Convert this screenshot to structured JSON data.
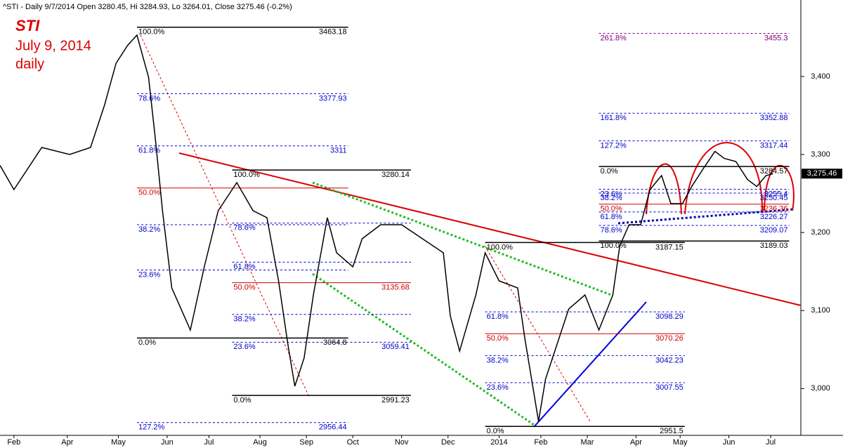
{
  "chart_data": {
    "type": "line",
    "header": "^STI - Daily 9/7/2014 Open 3280.45, Hi 3284.93, Lo 3264.01, Close 3275.46 (-0.2%)",
    "title": "STI",
    "subtitle": "July 9, 2014",
    "subtitle2": "daily",
    "xlim": [
      0,
      345
    ],
    "xticks": [
      {
        "value": 6,
        "label": "Feb"
      },
      {
        "value": 29,
        "label": "Apr"
      },
      {
        "value": 51,
        "label": "May"
      },
      {
        "value": 72,
        "label": "Jun"
      },
      {
        "value": 90,
        "label": "Jul"
      },
      {
        "value": 112,
        "label": "Aug"
      },
      {
        "value": 132,
        "label": "Sep"
      },
      {
        "value": 152,
        "label": "Oct"
      },
      {
        "value": 173,
        "label": "Nov"
      },
      {
        "value": 193,
        "label": "Dec"
      },
      {
        "value": 215,
        "label": "2014"
      },
      {
        "value": 233,
        "label": "Feb"
      },
      {
        "value": 253,
        "label": "Mar"
      },
      {
        "value": 274,
        "label": "Apr"
      },
      {
        "value": 293,
        "label": "May"
      },
      {
        "value": 314,
        "label": "Jun"
      },
      {
        "value": 332,
        "label": "Jul"
      }
    ],
    "ylim": [
      2940,
      3498
    ],
    "yticks": [
      {
        "value": 3000,
        "label": "3,000"
      },
      {
        "value": 3100,
        "label": "3,100"
      },
      {
        "value": 3200,
        "label": "3,200"
      },
      {
        "value": 3300,
        "label": "3,300"
      },
      {
        "value": 3400,
        "label": "3,400"
      }
    ],
    "last_price": {
      "value": 3275.46,
      "label": "3,275.46"
    },
    "series": [
      {
        "name": "STI",
        "color": "#000000",
        "x": [
          0,
          6,
          18,
          30,
          39,
          45,
          50,
          55,
          59,
          64,
          67,
          70,
          74,
          82,
          88,
          94,
          102,
          109,
          115,
          120,
          124,
          127,
          131,
          135,
          141,
          145,
          152,
          156,
          164,
          173,
          182,
          191,
          194,
          198,
          205,
          209,
          215,
          223,
          226,
          230,
          232,
          235,
          239,
          245,
          252,
          258,
          264,
          267,
          271,
          276,
          280,
          285,
          289,
          294,
          298,
          303,
          308,
          312,
          317,
          322,
          326,
          330,
          333
        ],
        "values": [
          3286,
          3255,
          3309,
          3300,
          3309,
          3363,
          3417,
          3440,
          3453,
          3399,
          3318,
          3228,
          3129,
          3075,
          3156,
          3228,
          3264,
          3228,
          3219,
          3138,
          3057,
          3003,
          3039,
          3120,
          3219,
          3174,
          3156,
          3192,
          3210,
          3210,
          3192,
          3174,
          3093,
          3048,
          3120,
          3174,
          3138,
          3129,
          3066,
          2994,
          2958,
          3012,
          3048,
          3102,
          3120,
          3075,
          3120,
          3183,
          3210,
          3210,
          3255,
          3273,
          3237,
          3237,
          3259,
          3282,
          3304,
          3295,
          3291,
          3268,
          3259,
          3273,
          3275.46
        ]
      }
    ],
    "fib": [
      {
        "x": [
          59,
          150
        ],
        "color": "#0000cc",
        "levels": [
          {
            "pct": "100.0%",
            "price": 3463.18,
            "color": "#000000"
          },
          {
            "pct": "78.6%",
            "price": 3377.93
          },
          {
            "pct": "61.8%",
            "price": 3311.0
          },
          {
            "pct": "50.0%",
            "level": 3257,
            "color": "#cc0000"
          },
          {
            "pct": "38.2%",
            "level": 3210
          },
          {
            "pct": "23.6%",
            "level": 3152
          },
          {
            "pct": "0.0%",
            "price": 3064.8,
            "color": "#000000"
          },
          {
            "pct": "127.2%",
            "price": 2956.44
          }
        ]
      },
      {
        "x": [
          100,
          177
        ],
        "color": "#0000cc",
        "levels": [
          {
            "pct": "100.0%",
            "price": 3280.14,
            "color": "#000000"
          },
          {
            "pct": "78.6%",
            "level": 3212
          },
          {
            "pct": "61.8%",
            "level": 3162
          },
          {
            "pct": "50.0%",
            "price": 3135.68,
            "color": "#cc0000"
          },
          {
            "pct": "38.2%",
            "level": 3095
          },
          {
            "pct": "23.6%",
            "price": 3059.41
          },
          {
            "pct": "0.0%",
            "price": 2991.23,
            "color": "#000000"
          }
        ]
      },
      {
        "x": [
          209,
          295
        ],
        "color": "#0000cc",
        "levels": [
          {
            "pct": "100.0%",
            "price": 3187.15,
            "color": "#000000"
          },
          {
            "pct": "61.8%",
            "price": 3098.29
          },
          {
            "pct": "50.0%",
            "price": 3070.26,
            "color": "#cc0000"
          },
          {
            "pct": "38.2%",
            "price": 3042.23
          },
          {
            "pct": "23.6%",
            "price": 3007.55
          },
          {
            "pct": "0.0%",
            "price": 2951.5,
            "color": "#000000"
          }
        ]
      },
      {
        "x": [
          258,
          340
        ],
        "color": "#0000cc",
        "levels": [
          {
            "pct": "261.8%",
            "price": 3455.3,
            "color": "#800080"
          },
          {
            "pct": "161.8%",
            "price": 3352.88
          },
          {
            "pct": "127.2%",
            "price": 3317.44
          },
          {
            "pct": "0.0%",
            "price": 3284.57,
            "color": "#000000"
          },
          {
            "pct": "23.6%",
            "price": 3255.4
          },
          {
            "pct": "38.2%",
            "price": 3250.45
          },
          {
            "pct": "50.0%",
            "price": 3236.36,
            "color": "#cc0000"
          },
          {
            "pct": "61.8%",
            "price": 3226.27
          },
          {
            "pct": "78.6%",
            "price": 3209.07
          },
          {
            "pct": "100.0%",
            "price": 3189.03,
            "color": "#000000"
          }
        ]
      }
    ]
  }
}
